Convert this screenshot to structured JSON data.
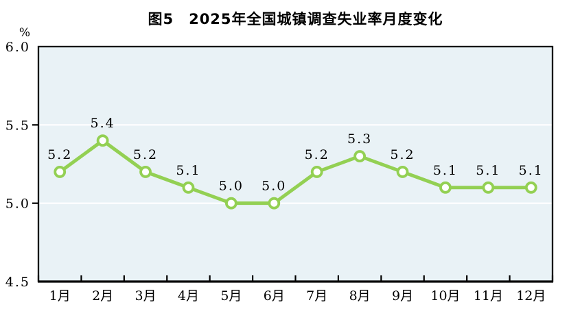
{
  "header": {
    "title": "图5　2025年全国城镇调查失业率月度变化"
  },
  "chart_data": {
    "type": "line",
    "title": "图5　2025年全国城镇调查失业率月度变化",
    "unit_label": "%",
    "xlabel": "",
    "ylabel": "%",
    "categories": [
      "1月",
      "2月",
      "3月",
      "4月",
      "5月",
      "6月",
      "7月",
      "8月",
      "9月",
      "10月",
      "11月",
      "12月"
    ],
    "values": [
      5.2,
      5.4,
      5.2,
      5.1,
      5.0,
      5.0,
      5.2,
      5.3,
      5.2,
      5.1,
      5.1,
      5.1
    ],
    "point_labels": [
      "5.2",
      "5.4",
      "5.2",
      "5.1",
      "5.0",
      "5.0",
      "5.2",
      "5.3",
      "5.2",
      "5.1",
      "5.1",
      "5.1"
    ],
    "ylim": [
      4.5,
      6.0
    ],
    "yticks": [
      4.5,
      5.0,
      5.5,
      6.0
    ],
    "ytick_labels": [
      "4.5",
      "5.0",
      "5.5",
      "6.0"
    ],
    "grid": "horizontal white gridlines at 5.0 and 5.5",
    "legend": "none",
    "colors": {
      "line": "#93d053",
      "marker_fill": "#ffffff",
      "plot_bg": "#e9f2f6",
      "grid": "#ffffff",
      "axis": "#000000",
      "text": "#000000"
    }
  }
}
